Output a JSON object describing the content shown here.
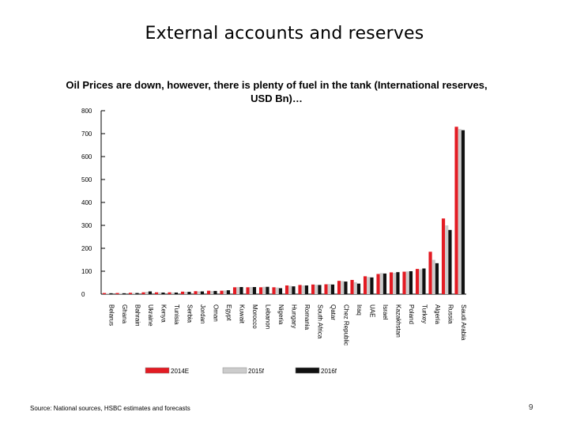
{
  "slide": {
    "title": "External accounts and reserves",
    "source": "Source: National sources, HSBC estimates and forecasts",
    "page_number": "9"
  },
  "colors": {
    "series_2014": "#e31b23",
    "series_2015": "#cccccc",
    "series_2016": "#111111",
    "axis": "#000000"
  },
  "chart_data": {
    "type": "bar",
    "title": "Oil Prices are down, however, there is plenty of fuel in the tank (International reserves, USD Bn)…",
    "xlabel": "",
    "ylabel": "",
    "ylim": [
      0,
      800
    ],
    "yticks": [
      0,
      100,
      200,
      300,
      400,
      500,
      600,
      700,
      800
    ],
    "grid": false,
    "legend_position": "bottom",
    "categories": [
      "Belarus",
      "Ghana",
      "Bahrain",
      "Ukraine",
      "Kenya",
      "Tunisia",
      "Serbia",
      "Jordan",
      "Oman",
      "Egypt",
      "Kuwait",
      "Morocco",
      "Lebanon",
      "Nigeria",
      "Hungary",
      "Romania",
      "South Africa",
      "Qatar",
      "Chez Republic",
      "Iraq",
      "UAE",
      "Israel",
      "Kazakhstan",
      "Poland",
      "Turkey",
      "Algeria",
      "Russia",
      "Saudi Arabia"
    ],
    "series": [
      {
        "name": "2014E",
        "values": [
          5,
          5,
          6,
          8,
          8,
          8,
          11,
          13,
          15,
          15,
          30,
          30,
          30,
          30,
          38,
          40,
          42,
          43,
          58,
          62,
          78,
          88,
          95,
          98,
          110,
          185,
          330,
          730
        ]
      },
      {
        "name": "2015f",
        "values": [
          4,
          4,
          5,
          10,
          7,
          7,
          10,
          12,
          14,
          16,
          31,
          31,
          32,
          29,
          36,
          38,
          41,
          44,
          57,
          52,
          75,
          92,
          93,
          99,
          108,
          150,
          300,
          720
        ]
      },
      {
        "name": "2016f",
        "values": [
          4,
          4,
          5,
          12,
          7,
          7,
          10,
          12,
          14,
          17,
          31,
          31,
          32,
          26,
          34,
          38,
          40,
          42,
          55,
          46,
          73,
          90,
          96,
          100,
          112,
          135,
          280,
          715
        ]
      }
    ]
  }
}
